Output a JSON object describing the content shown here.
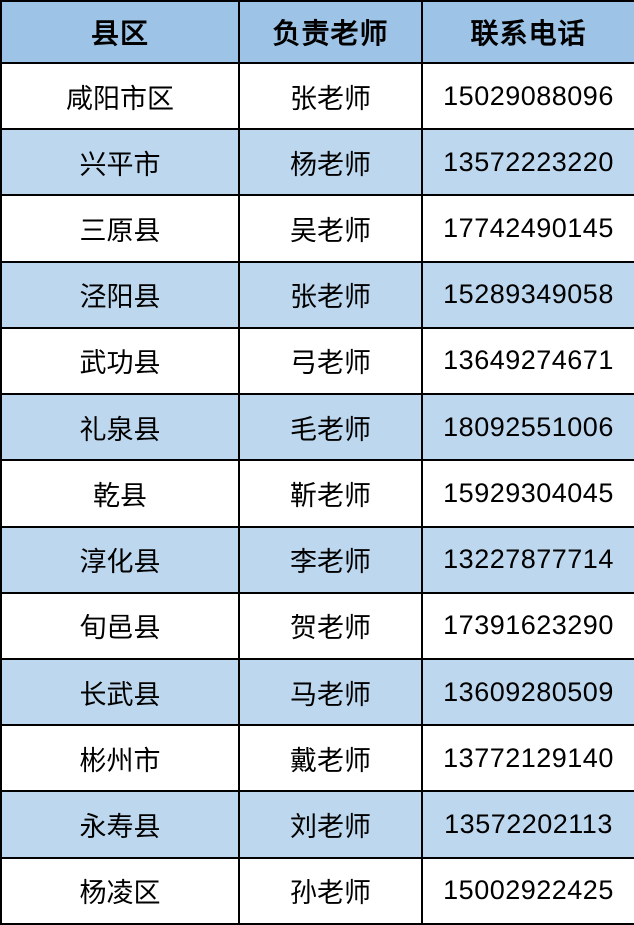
{
  "colors": {
    "header_bg": "#9dc3e6",
    "stripe_bg": "#bdd7ee",
    "row_bg": "#ffffff",
    "border": "#000000",
    "text": "#000000"
  },
  "table": {
    "headers": {
      "district": "县区",
      "teacher": "负责老师",
      "phone": "联系电话"
    },
    "rows": [
      {
        "district": "咸阳市区",
        "teacher": "张老师",
        "phone": "15029088096"
      },
      {
        "district": "兴平市",
        "teacher": "杨老师",
        "phone": "13572223220"
      },
      {
        "district": "三原县",
        "teacher": "吴老师",
        "phone": "17742490145"
      },
      {
        "district": "泾阳县",
        "teacher": "张老师",
        "phone": "15289349058"
      },
      {
        "district": "武功县",
        "teacher": "弓老师",
        "phone": "13649274671"
      },
      {
        "district": "礼泉县",
        "teacher": "毛老师",
        "phone": "18092551006"
      },
      {
        "district": "乾县",
        "teacher": "靳老师",
        "phone": "15929304045"
      },
      {
        "district": "淳化县",
        "teacher": "李老师",
        "phone": "13227877714"
      },
      {
        "district": "旬邑县",
        "teacher": "贺老师",
        "phone": "17391623290"
      },
      {
        "district": "长武县",
        "teacher": "马老师",
        "phone": "13609280509"
      },
      {
        "district": "彬州市",
        "teacher": "戴老师",
        "phone": "13772129140"
      },
      {
        "district": "永寿县",
        "teacher": "刘老师",
        "phone": "13572202113"
      },
      {
        "district": "杨凌区",
        "teacher": "孙老师",
        "phone": "15002922425"
      }
    ]
  }
}
